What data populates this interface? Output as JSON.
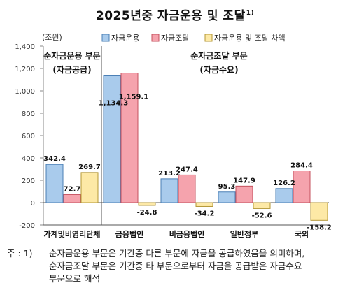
{
  "title": "2025년중 자금운용 및 조달",
  "title_note_mark": "1)",
  "unit_label": "(조원)",
  "colors": {
    "series_1": "#a9cbec",
    "series_2": "#f5a3ad",
    "series_3": "#fde9a6",
    "stroke_1": "#4a7fb5",
    "stroke_2": "#c4505e",
    "stroke_3": "#b49736"
  },
  "sections": {
    "left": {
      "line1": "순자금운용 부문",
      "line2": "(자금공급)"
    },
    "right": {
      "line1": "순자금조달 부문",
      "line2": "(자금수요)"
    }
  },
  "notes": {
    "prefix": "주 : 1)",
    "line1": "순자금운용 부문은 기간중 다른 부문에 자금을 공급하였음을 의미하며,",
    "line2": "순자금조달 부문은 기간중 타 부문으로부터 자금을 공급받은 자금수요",
    "line3": "부문으로 해석"
  },
  "chart_data": {
    "type": "bar",
    "categories": [
      "가계및비영리단체",
      "금융법인",
      "비금융법인",
      "일반정부",
      "국외"
    ],
    "series": [
      {
        "name": "자금운용",
        "values": [
          342.4,
          1134.3,
          213.2,
          95.3,
          126.2
        ]
      },
      {
        "name": "자금조달",
        "values": [
          72.7,
          1159.1,
          247.4,
          147.9,
          284.4
        ]
      },
      {
        "name": "자금운용 및 조달 차액",
        "values": [
          269.7,
          -24.8,
          -34.2,
          -52.6,
          -158.2
        ]
      }
    ],
    "ylim": [
      -200,
      1400
    ],
    "yticks": [
      "-200",
      "0",
      "200",
      "400",
      "600",
      "800",
      "1,000",
      "1,200",
      "1,400"
    ],
    "ytick_values": [
      -200,
      0,
      200,
      400,
      600,
      800,
      1000,
      1200,
      1400
    ],
    "data_labels": [
      [
        "342.4",
        "72.7",
        "269.7"
      ],
      [
        "1,134.3",
        "1,159.1",
        "-24.8"
      ],
      [
        "213.2",
        "247.4",
        "-34.2"
      ],
      [
        "95.3",
        "147.9",
        "-52.6"
      ],
      [
        "126.2",
        "284.4",
        "-158.2"
      ]
    ],
    "legend_position": "top"
  }
}
